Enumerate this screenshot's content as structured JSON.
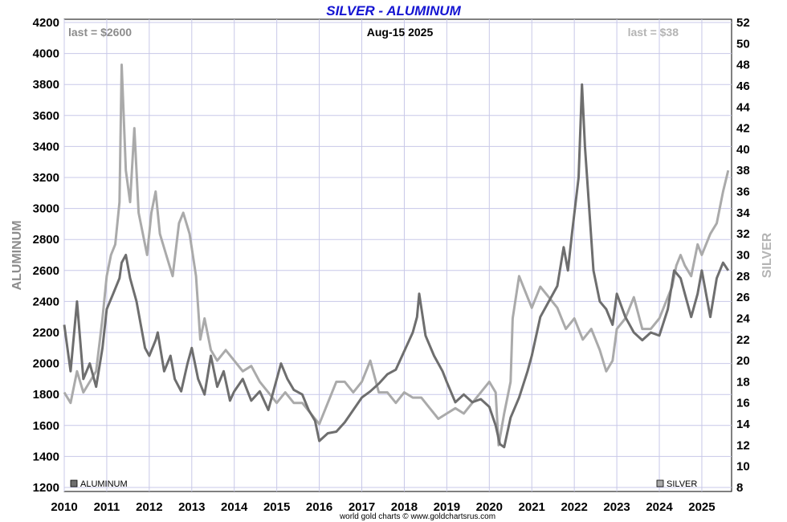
{
  "chart_data": {
    "type": "line",
    "title": "SILVER - ALUMINUM",
    "date_label": "Aug-15  2025",
    "footer": "world gold charts © www.goldchartsrus.com",
    "grid": true,
    "x_ticks": [
      "2010",
      "2011",
      "2012",
      "2013",
      "2014",
      "2015",
      "2016",
      "2017",
      "2018",
      "2019",
      "2020",
      "2021",
      "2022",
      "2023",
      "2024",
      "2025"
    ],
    "xlim": [
      2010.0,
      2025.7
    ],
    "left_axis": {
      "label": "ALUMINUM",
      "ylim": [
        1200,
        4200
      ],
      "ticks": [
        "1200",
        "1400",
        "1600",
        "1800",
        "2000",
        "2200",
        "2400",
        "2600",
        "2800",
        "3000",
        "3200",
        "3400",
        "3600",
        "3800",
        "4000",
        "4200"
      ]
    },
    "right_axis": {
      "label": "SILVER",
      "ylim": [
        8,
        52
      ],
      "ticks": [
        "8",
        "10",
        "12",
        "14",
        "16",
        "18",
        "20",
        "22",
        "24",
        "26",
        "28",
        "30",
        "32",
        "34",
        "36",
        "38",
        "40",
        "42",
        "44",
        "46",
        "48",
        "50",
        "52"
      ]
    },
    "annotations": {
      "left_last": "last = $2600",
      "right_last": "last = $38"
    },
    "series": [
      {
        "name": "ALUMINUM",
        "axis": "left",
        "color": "#6e6e6e",
        "x": [
          2010.0,
          2010.15,
          2010.3,
          2010.45,
          2010.6,
          2010.75,
          2010.9,
          2011.0,
          2011.15,
          2011.3,
          2011.35,
          2011.45,
          2011.55,
          2011.7,
          2011.8,
          2011.9,
          2012.0,
          2012.15,
          2012.2,
          2012.35,
          2012.5,
          2012.6,
          2012.75,
          2012.9,
          2013.0,
          2013.15,
          2013.3,
          2013.45,
          2013.6,
          2013.75,
          2013.9,
          2014.0,
          2014.2,
          2014.4,
          2014.6,
          2014.8,
          2014.95,
          2015.1,
          2015.25,
          2015.4,
          2015.6,
          2015.75,
          2015.9,
          2016.0,
          2016.2,
          2016.4,
          2016.6,
          2016.8,
          2017.0,
          2017.2,
          2017.4,
          2017.6,
          2017.8,
          2018.0,
          2018.2,
          2018.3,
          2018.35,
          2018.5,
          2018.7,
          2018.9,
          2019.0,
          2019.2,
          2019.4,
          2019.6,
          2019.8,
          2020.0,
          2020.15,
          2020.25,
          2020.35,
          2020.5,
          2020.7,
          2020.9,
          2021.0,
          2021.2,
          2021.4,
          2021.6,
          2021.75,
          2021.85,
          2021.95,
          2022.1,
          2022.18,
          2022.25,
          2022.35,
          2022.45,
          2022.6,
          2022.75,
          2022.9,
          2023.0,
          2023.2,
          2023.4,
          2023.6,
          2023.8,
          2024.0,
          2024.2,
          2024.35,
          2024.5,
          2024.6,
          2024.75,
          2024.9,
          2025.0,
          2025.2,
          2025.35,
          2025.5,
          2025.62
        ],
        "values": [
          2250,
          1950,
          2400,
          1900,
          2000,
          1850,
          2100,
          2350,
          2450,
          2550,
          2650,
          2700,
          2550,
          2400,
          2250,
          2100,
          2050,
          2150,
          2200,
          1950,
          2050,
          1900,
          1820,
          2000,
          2100,
          1900,
          1800,
          2050,
          1850,
          1950,
          1760,
          1820,
          1900,
          1760,
          1820,
          1700,
          1850,
          2000,
          1900,
          1830,
          1800,
          1700,
          1630,
          1500,
          1550,
          1560,
          1620,
          1700,
          1780,
          1820,
          1870,
          1930,
          1960,
          2080,
          2200,
          2300,
          2450,
          2180,
          2050,
          1950,
          1880,
          1750,
          1800,
          1750,
          1770,
          1720,
          1600,
          1480,
          1460,
          1650,
          1780,
          1950,
          2050,
          2300,
          2400,
          2500,
          2750,
          2600,
          2850,
          3200,
          3800,
          3400,
          3000,
          2600,
          2400,
          2350,
          2250,
          2450,
          2300,
          2200,
          2150,
          2200,
          2180,
          2350,
          2600,
          2550,
          2450,
          2300,
          2450,
          2600,
          2300,
          2550,
          2650,
          2600
        ]
      },
      {
        "name": "SILVER",
        "axis": "right",
        "color": "#aaaaaa",
        "x": [
          2010.0,
          2010.15,
          2010.3,
          2010.45,
          2010.6,
          2010.75,
          2010.9,
          2011.0,
          2011.1,
          2011.2,
          2011.3,
          2011.35,
          2011.45,
          2011.55,
          2011.65,
          2011.75,
          2011.85,
          2011.95,
          2012.05,
          2012.15,
          2012.25,
          2012.4,
          2012.55,
          2012.7,
          2012.8,
          2012.95,
          2013.1,
          2013.2,
          2013.3,
          2013.45,
          2013.6,
          2013.8,
          2014.0,
          2014.2,
          2014.4,
          2014.6,
          2014.8,
          2015.0,
          2015.2,
          2015.4,
          2015.6,
          2015.8,
          2016.0,
          2016.2,
          2016.4,
          2016.6,
          2016.8,
          2017.0,
          2017.2,
          2017.4,
          2017.6,
          2017.8,
          2018.0,
          2018.2,
          2018.4,
          2018.6,
          2018.8,
          2019.0,
          2019.2,
          2019.4,
          2019.6,
          2019.8,
          2020.0,
          2020.15,
          2020.22,
          2020.35,
          2020.5,
          2020.55,
          2020.7,
          2020.9,
          2021.0,
          2021.2,
          2021.4,
          2021.6,
          2021.8,
          2022.0,
          2022.2,
          2022.4,
          2022.6,
          2022.75,
          2022.9,
          2023.0,
          2023.2,
          2023.4,
          2023.6,
          2023.8,
          2024.0,
          2024.2,
          2024.3,
          2024.4,
          2024.5,
          2024.6,
          2024.75,
          2024.9,
          2025.0,
          2025.2,
          2025.35,
          2025.5,
          2025.62
        ],
        "values": [
          17,
          16,
          19,
          17,
          18,
          19,
          24,
          28,
          30,
          31,
          35,
          48,
          38,
          35,
          42,
          34,
          32,
          30,
          34,
          36,
          32,
          30,
          28,
          33,
          34,
          32,
          28,
          22,
          24,
          21,
          20,
          21,
          20,
          19,
          19.5,
          18,
          17,
          16,
          17,
          16,
          16,
          15,
          14,
          16,
          18,
          18,
          17,
          18,
          20,
          17,
          17,
          16,
          17,
          16.5,
          16.5,
          15.5,
          14.5,
          15,
          15.5,
          15,
          16,
          17,
          18,
          17,
          12,
          15,
          18,
          24,
          28,
          26,
          25,
          27,
          26,
          25,
          23,
          24,
          22,
          23,
          21,
          19,
          20,
          23,
          24,
          26,
          23,
          23,
          24,
          26,
          27,
          29,
          30,
          29,
          28,
          31,
          30,
          32,
          33,
          36,
          38
        ]
      }
    ]
  }
}
